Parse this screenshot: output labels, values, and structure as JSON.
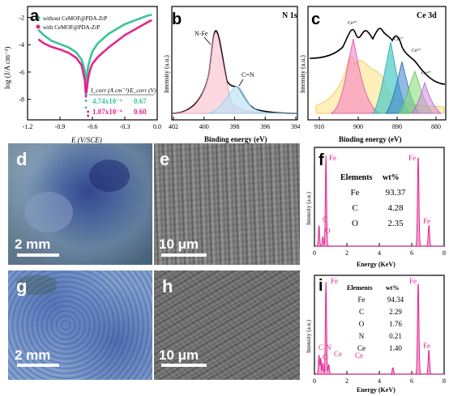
{
  "figure": {
    "panel_labels": [
      "a",
      "b",
      "c",
      "d",
      "e",
      "f",
      "g",
      "h",
      "i"
    ],
    "scale_bars": {
      "d": "2 mm",
      "e": "10 μm",
      "g": "2 mm",
      "h": "10 μm"
    }
  },
  "chart_data": [
    {
      "panel": "a",
      "type": "line",
      "xlabel": "E (V/SCE)",
      "ylabel": "log (J/A cm⁻²)",
      "xlim": [
        -1.2,
        0.0
      ],
      "ylim": [
        -9.5,
        -1.2
      ],
      "x_ticks": [
        "-1.2",
        "-0.9",
        "-0.6",
        "-0.3",
        "0.0"
      ],
      "y_ticks": [
        "-2",
        "-4",
        "-6",
        "-8"
      ],
      "legend": [
        "without CeMOF@PDA-ZrP",
        "with CeMOF@PDA-ZrP"
      ],
      "series": [
        {
          "name": "without CeMOF@PDA-ZrP",
          "color": "#3cc39a",
          "x": [
            -1.1,
            -1.05,
            -0.98,
            -0.9,
            -0.82,
            -0.75,
            -0.7,
            -0.67,
            -0.66,
            -0.65,
            -0.64,
            -0.62,
            -0.6,
            -0.55,
            -0.45,
            -0.3,
            -0.1,
            -0.05
          ],
          "y": [
            -2.9,
            -3.3,
            -3.7,
            -3.95,
            -4.2,
            -4.55,
            -5.1,
            -5.9,
            -7.2,
            -6.3,
            -5.6,
            -5.0,
            -4.5,
            -3.9,
            -3.2,
            -2.5,
            -1.9,
            -1.8
          ]
        },
        {
          "name": "with CeMOF@PDA-ZrP",
          "color": "#e3258c",
          "x": [
            -1.1,
            -1.05,
            -0.98,
            -0.9,
            -0.82,
            -0.75,
            -0.7,
            -0.67,
            -0.66,
            -0.64,
            -0.62,
            -0.6,
            -0.55,
            -0.45,
            -0.3,
            -0.1,
            -0.05
          ],
          "y": [
            -3.6,
            -3.9,
            -4.15,
            -4.35,
            -4.6,
            -4.95,
            -5.5,
            -6.6,
            -7.8,
            -6.5,
            -5.8,
            -5.4,
            -4.9,
            -4.2,
            -3.3,
            -2.4,
            -2.2
          ]
        }
      ],
      "table": {
        "headers": [
          "I_corr (A cm⁻²)",
          "E_corr (V)"
        ],
        "rows": [
          [
            "4.74x10⁻⁴",
            "0.67"
          ],
          [
            "1.07x10⁻⁴",
            "0.60"
          ]
        ]
      }
    },
    {
      "panel": "b",
      "type": "line",
      "title": "N 1s",
      "xlabel": "Binding energy (eV)",
      "ylabel": "Intensity (a.u.)",
      "x_ticks": [
        "402",
        "400",
        "398",
        "396",
        "394"
      ],
      "peaks": [
        "N-Fe",
        "C=N"
      ]
    },
    {
      "panel": "c",
      "type": "line",
      "title": "Ce 3d",
      "xlabel": "Binding energy (eV)",
      "ylabel": "Intensity (a.u.)",
      "x_ticks": [
        "910",
        "900",
        "890",
        "880"
      ],
      "peaks": [
        "Ce⁴⁺",
        "Ce³⁺",
        "Ce³⁺",
        "Ce⁴⁺"
      ]
    },
    {
      "panel": "f",
      "type": "bar",
      "xlabel": "Energy (KeV)",
      "ylabel": "Intensity (a.u.)",
      "x_ticks": [
        "0",
        "2",
        "4",
        "6",
        "8"
      ],
      "peak_labels": [
        "C",
        "O",
        "Fe",
        "Fe",
        "Fe"
      ],
      "table": {
        "headers": [
          "Elements",
          "wt%"
        ],
        "rows": [
          [
            "Fe",
            "93.37"
          ],
          [
            "C",
            "4.28"
          ],
          [
            "O",
            "2.35"
          ]
        ]
      }
    },
    {
      "panel": "i",
      "type": "bar",
      "xlabel": "Energy (KeV)",
      "ylabel": "Intensity (a.u.)",
      "x_ticks": [
        "0",
        "2",
        "4",
        "6",
        "8"
      ],
      "peak_labels": [
        "C",
        "N",
        "O",
        "Ce",
        "Ce",
        "Fe",
        "Fe",
        "Fe"
      ],
      "table": {
        "headers": [
          "Elements",
          "wt%"
        ],
        "rows": [
          [
            "Fe",
            "94.34"
          ],
          [
            "C",
            "2.29"
          ],
          [
            "O",
            "1.76"
          ],
          [
            "N",
            "0.21"
          ],
          [
            "Ce",
            "1.40"
          ]
        ]
      }
    }
  ]
}
